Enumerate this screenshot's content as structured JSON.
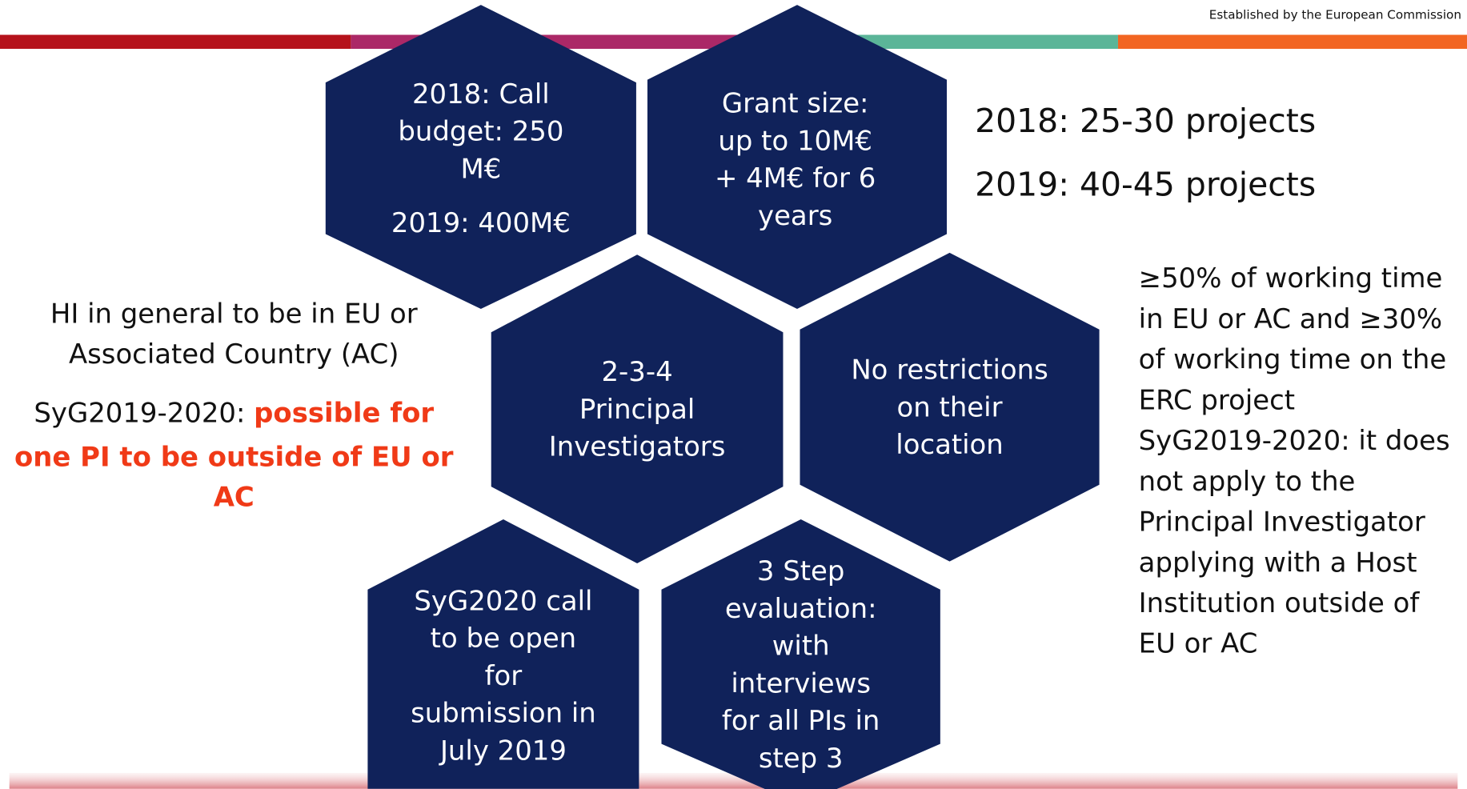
{
  "header": {
    "tagline": "Established by the European Commission"
  },
  "hexagons": [
    {
      "lines": [
        "2018: Call",
        "budget: 250",
        "M€",
        "2019: 400M€"
      ]
    },
    {
      "lines": [
        "Grant size:",
        "up to 10M€",
        "+ 4M€ for 6",
        "years"
      ]
    },
    {
      "lines": [
        "2-3-4",
        "Principal",
        "Investigators"
      ]
    },
    {
      "lines": [
        "No restrictions",
        "on their",
        "location"
      ]
    },
    {
      "lines": [
        "SyG2020 call",
        "to be open",
        "for",
        "submission in",
        "July 2019"
      ]
    },
    {
      "lines": [
        "3 Step",
        "evaluation:",
        "with",
        "interviews",
        "for all PIs in",
        "step 3"
      ]
    }
  ],
  "projects": [
    "2018: 25-30 projects",
    "2019: 40-45 projects"
  ],
  "working_time": {
    "lines": [
      "≥50% of working time",
      "in EU or AC and ≥30%",
      "of working time on the",
      "ERC project",
      "SyG2019-2020: it does",
      "not apply to the",
      "Principal Investigator",
      "applying with a Host",
      "Institution outside of",
      "EU or AC"
    ]
  },
  "host_institution": {
    "lines": [
      "HI in general  to be in EU or",
      "Associated Country (AC)"
    ],
    "note_prefix": "SyG2019-2020:",
    "note_highlight": [
      "possible for",
      "one PI to be outside of EU or",
      "AC"
    ]
  }
}
